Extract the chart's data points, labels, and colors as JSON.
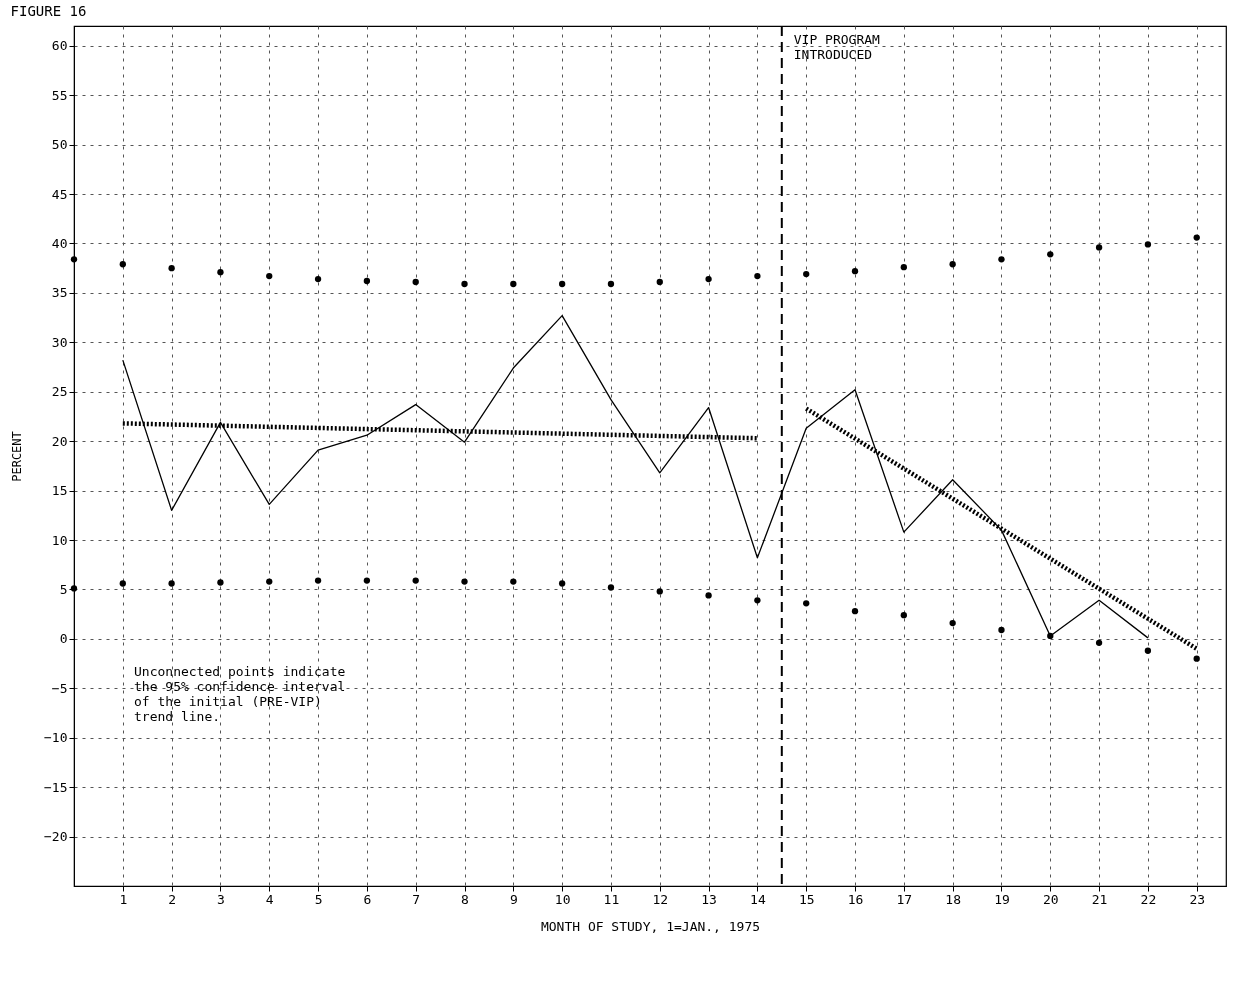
{
  "chart_data": {
    "type": "line",
    "title": "FIGURE 16",
    "xlabel": "MONTH OF STUDY, 1=JAN., 1975",
    "ylabel": "PERCENT",
    "xlim": [
      0,
      23.6
    ],
    "xticks": [
      1,
      2,
      3,
      4,
      5,
      6,
      7,
      8,
      9,
      10,
      11,
      12,
      13,
      14,
      15,
      16,
      17,
      18,
      19,
      20,
      21,
      22,
      23
    ],
    "ylim": [
      -25,
      62
    ],
    "yticks": [
      -20,
      -15,
      -10,
      -5,
      0,
      5,
      10,
      15,
      20,
      25,
      30,
      35,
      40,
      45,
      50,
      55,
      60
    ],
    "grid": true,
    "series": [
      {
        "color": "#000000",
        "marker": "none",
        "line_style": "solid",
        "x": [
          1,
          2,
          3,
          4,
          5,
          6,
          7,
          8,
          9,
          10,
          11,
          12,
          13,
          14,
          15,
          16,
          17,
          18,
          19,
          20,
          21,
          22
        ],
        "values": [
          28.2,
          13.0,
          21.9,
          13.6,
          19.1,
          20.6,
          23.7,
          19.9,
          27.4,
          32.7,
          24.2,
          16.8,
          23.4,
          8.2,
          21.3,
          25.2,
          10.8,
          16.1,
          11.0,
          0.3,
          3.9,
          0.1
        ]
      },
      {
        "type": "scatter",
        "color": "#000000",
        "marker": "circle",
        "x": [
          0,
          1,
          2,
          3,
          4,
          5,
          6,
          7,
          8,
          9,
          10,
          11,
          12,
          13,
          14,
          15,
          16,
          17,
          18,
          19,
          20,
          21,
          22,
          23
        ],
        "values": [
          38.4,
          37.9,
          37.5,
          37.1,
          36.7,
          36.4,
          36.2,
          36.1,
          35.9,
          35.9,
          35.9,
          35.9,
          36.1,
          36.4,
          36.7,
          36.9,
          37.2,
          37.6,
          37.9,
          38.4,
          38.9,
          39.6,
          39.9,
          40.6
        ]
      },
      {
        "type": "scatter",
        "color": "#000000",
        "marker": "circle",
        "x": [
          0,
          1,
          2,
          3,
          4,
          5,
          6,
          7,
          8,
          9,
          10,
          11,
          12,
          13,
          14,
          15,
          16,
          17,
          18,
          19,
          20,
          21,
          22,
          23
        ],
        "values": [
          5.1,
          5.6,
          5.6,
          5.7,
          5.8,
          5.9,
          5.9,
          5.9,
          5.8,
          5.8,
          5.6,
          5.2,
          4.8,
          4.4,
          3.9,
          3.6,
          2.8,
          2.4,
          1.6,
          0.9,
          0.3,
          -0.4,
          -1.2,
          -2.0
        ]
      },
      {
        "color": "#000000",
        "marker": "none",
        "line_style": "dotted",
        "x": [
          1,
          14
        ],
        "values": [
          21.8,
          20.3
        ]
      },
      {
        "color": "#000000",
        "marker": "none",
        "line_style": "dotted",
        "x": [
          15,
          23
        ],
        "values": [
          23.3,
          -1.0
        ]
      }
    ],
    "ref_lines": [
      {
        "axis": "x",
        "value": 14.5,
        "label": "VIP PROGRAM\nINTRODUCED",
        "line_style": "dashed",
        "color": "#000000"
      }
    ],
    "annotations": [
      "Unconnected points indicate\nthe 95% confidence interval\nof the initial (PRE-VIP)\ntrend line."
    ]
  }
}
